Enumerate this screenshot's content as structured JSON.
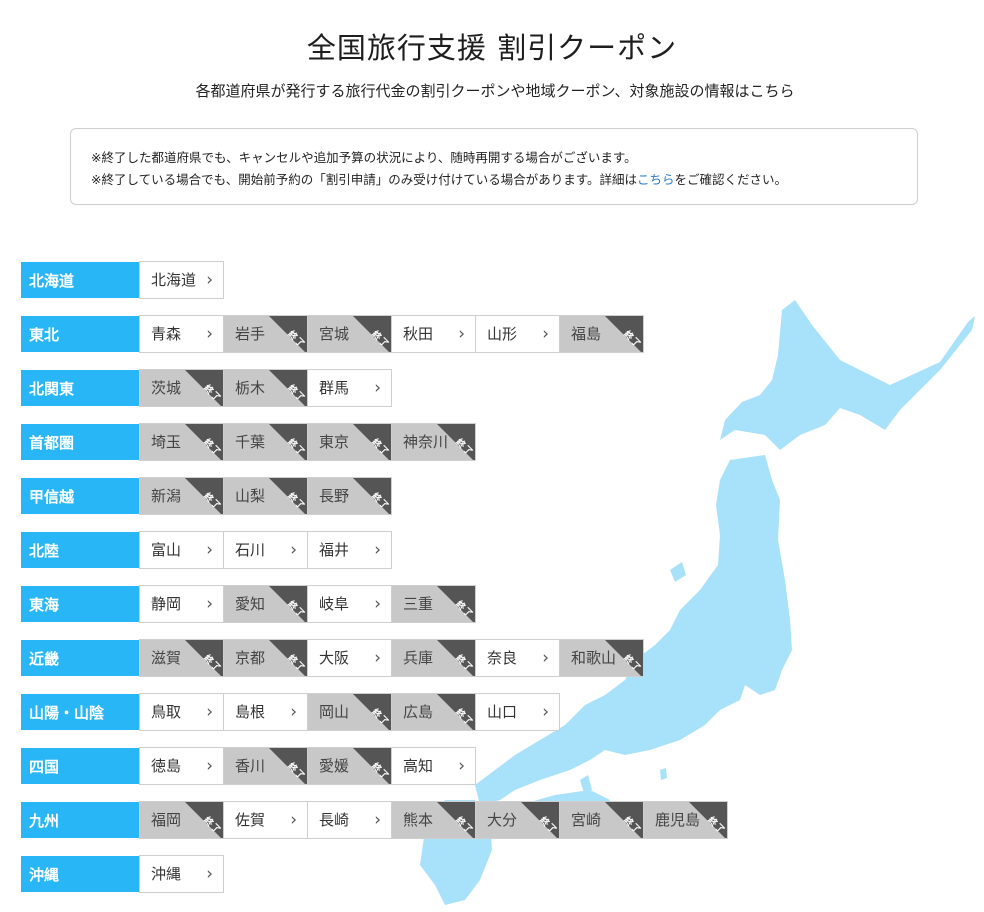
{
  "page": {
    "title": "全国旅行支援 割引クーポン",
    "subtitle": "各都道府県が発行する旅行代金の割引クーポンや地域クーポン、対象施設の情報はこちら",
    "notice_line1": "※終了した都道府県でも、キャンセルや追加予算の状況により、随時再開する場合がございます。",
    "notice_line2_pre": "※終了している場合でも、開始前予約の「割引申請」のみ受け付けている場合があります。詳細は",
    "notice_link": "こちら",
    "notice_line2_post": "をご確認ください。",
    "ended_badge": "終了"
  },
  "colors": {
    "region_label": "#29b6f6",
    "map": "#a8e1fa",
    "ended_bg": "#c8c8c8",
    "ended_corner": "#555555"
  },
  "regions": [
    {
      "name": "北海道",
      "prefs": [
        {
          "name": "北海道",
          "ended": false
        }
      ]
    },
    {
      "name": "東北",
      "prefs": [
        {
          "name": "青森",
          "ended": false
        },
        {
          "name": "岩手",
          "ended": true
        },
        {
          "name": "宮城",
          "ended": true
        },
        {
          "name": "秋田",
          "ended": false
        },
        {
          "name": "山形",
          "ended": false
        },
        {
          "name": "福島",
          "ended": true
        }
      ]
    },
    {
      "name": "北関東",
      "prefs": [
        {
          "name": "茨城",
          "ended": true
        },
        {
          "name": "栃木",
          "ended": true
        },
        {
          "name": "群馬",
          "ended": false
        }
      ]
    },
    {
      "name": "首都圏",
      "prefs": [
        {
          "name": "埼玉",
          "ended": true
        },
        {
          "name": "千葉",
          "ended": true
        },
        {
          "name": "東京",
          "ended": true
        },
        {
          "name": "神奈川",
          "ended": true
        }
      ]
    },
    {
      "name": "甲信越",
      "prefs": [
        {
          "name": "新潟",
          "ended": true
        },
        {
          "name": "山梨",
          "ended": true
        },
        {
          "name": "長野",
          "ended": true
        }
      ]
    },
    {
      "name": "北陸",
      "prefs": [
        {
          "name": "富山",
          "ended": false
        },
        {
          "name": "石川",
          "ended": false
        },
        {
          "name": "福井",
          "ended": false
        }
      ]
    },
    {
      "name": "東海",
      "prefs": [
        {
          "name": "静岡",
          "ended": false
        },
        {
          "name": "愛知",
          "ended": true
        },
        {
          "name": "岐阜",
          "ended": false
        },
        {
          "name": "三重",
          "ended": true
        }
      ]
    },
    {
      "name": "近畿",
      "prefs": [
        {
          "name": "滋賀",
          "ended": true
        },
        {
          "name": "京都",
          "ended": true
        },
        {
          "name": "大阪",
          "ended": false
        },
        {
          "name": "兵庫",
          "ended": true
        },
        {
          "name": "奈良",
          "ended": false
        },
        {
          "name": "和歌山",
          "ended": true
        }
      ]
    },
    {
      "name": "山陽・山陰",
      "prefs": [
        {
          "name": "鳥取",
          "ended": false
        },
        {
          "name": "島根",
          "ended": false
        },
        {
          "name": "岡山",
          "ended": true
        },
        {
          "name": "広島",
          "ended": true
        },
        {
          "name": "山口",
          "ended": false
        }
      ]
    },
    {
      "name": "四国",
      "prefs": [
        {
          "name": "徳島",
          "ended": false
        },
        {
          "name": "香川",
          "ended": true
        },
        {
          "name": "愛媛",
          "ended": true
        },
        {
          "name": "高知",
          "ended": false
        }
      ]
    },
    {
      "name": "九州",
      "prefs": [
        {
          "name": "福岡",
          "ended": true
        },
        {
          "name": "佐賀",
          "ended": false
        },
        {
          "name": "長崎",
          "ended": false
        },
        {
          "name": "熊本",
          "ended": true
        },
        {
          "name": "大分",
          "ended": true
        },
        {
          "name": "宮崎",
          "ended": true
        },
        {
          "name": "鹿児島",
          "ended": true
        }
      ]
    },
    {
      "name": "沖縄",
      "prefs": [
        {
          "name": "沖縄",
          "ended": false
        }
      ]
    }
  ]
}
